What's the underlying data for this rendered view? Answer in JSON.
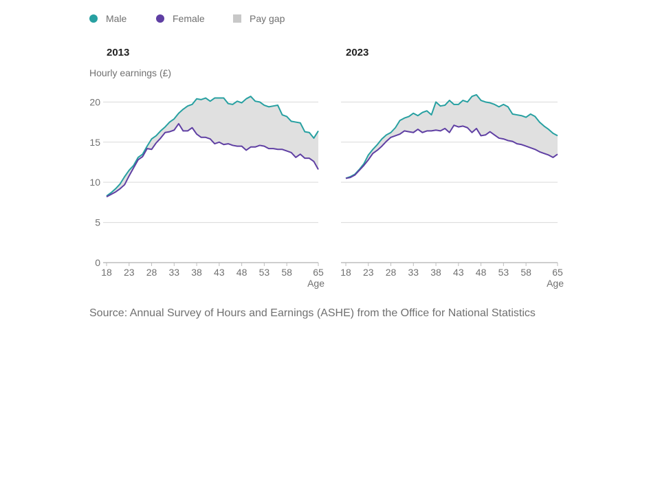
{
  "legend": [
    {
      "label": "Male",
      "marker": "circle",
      "color": "#27a0a1"
    },
    {
      "label": "Female",
      "marker": "circle",
      "color": "#5f3fa3"
    },
    {
      "label": "Pay gap",
      "marker": "square",
      "color": "#c8c8c8"
    }
  ],
  "y_axis_title": "Hourly earnings (£)",
  "x_axis_title": "Age",
  "source": "Source: Annual Survey of Hours and Earnings (ASHE) from the Office for National Statistics",
  "colors": {
    "male": "#27a0a1",
    "female": "#5f3fa3",
    "gap": "#e0e0e0"
  },
  "chart_data": [
    {
      "type": "line",
      "title": "2013",
      "xlabel": "Age",
      "ylabel": "Hourly earnings (£)",
      "xlim": [
        18,
        65
      ],
      "ylim": [
        0,
        22
      ],
      "x_ticks": [
        18,
        23,
        28,
        33,
        38,
        43,
        48,
        53,
        58,
        65
      ],
      "y_ticks": [
        0,
        5,
        10,
        15,
        20
      ],
      "grid": true,
      "x": [
        18,
        19,
        20,
        21,
        22,
        23,
        24,
        25,
        26,
        27,
        28,
        29,
        30,
        31,
        32,
        33,
        34,
        35,
        36,
        37,
        38,
        39,
        40,
        41,
        42,
        43,
        44,
        45,
        46,
        47,
        48,
        49,
        50,
        51,
        52,
        53,
        54,
        55,
        56,
        57,
        58,
        59,
        60,
        61,
        62,
        63,
        64,
        65
      ],
      "series": [
        {
          "name": "Male",
          "values": [
            8.3,
            8.7,
            9.2,
            9.8,
            10.7,
            11.5,
            12.1,
            13.1,
            13.5,
            14.5,
            15.4,
            15.8,
            16.4,
            16.9,
            17.5,
            17.9,
            18.6,
            19.1,
            19.5,
            19.7,
            20.4,
            20.3,
            20.5,
            20.1,
            20.5,
            20.5,
            20.5,
            19.8,
            19.7,
            20.1,
            19.9,
            20.4,
            20.7,
            20.1,
            20.0,
            19.6,
            19.4,
            19.5,
            19.6,
            18.4,
            18.2,
            17.6,
            17.5,
            17.4,
            16.3,
            16.2,
            15.5,
            16.4
          ]
        },
        {
          "name": "Female",
          "values": [
            8.2,
            8.5,
            8.8,
            9.2,
            9.7,
            10.8,
            11.8,
            12.8,
            13.2,
            14.2,
            14.1,
            14.9,
            15.5,
            16.2,
            16.3,
            16.5,
            17.3,
            16.4,
            16.4,
            16.8,
            16.0,
            15.6,
            15.6,
            15.4,
            14.8,
            15.0,
            14.7,
            14.8,
            14.6,
            14.5,
            14.5,
            14.0,
            14.4,
            14.4,
            14.6,
            14.5,
            14.2,
            14.2,
            14.1,
            14.1,
            13.9,
            13.7,
            13.1,
            13.5,
            13.0,
            13.0,
            12.6,
            11.6
          ]
        }
      ]
    },
    {
      "type": "line",
      "title": "2023",
      "xlabel": "Age",
      "ylabel": "Hourly earnings (£)",
      "xlim": [
        18,
        65
      ],
      "ylim": [
        0,
        22
      ],
      "x_ticks": [
        18,
        23,
        28,
        33,
        38,
        43,
        48,
        53,
        58,
        65
      ],
      "y_ticks": [
        0,
        5,
        10,
        15,
        20
      ],
      "grid": true,
      "x": [
        18,
        19,
        20,
        21,
        22,
        23,
        24,
        25,
        26,
        27,
        28,
        29,
        30,
        31,
        32,
        33,
        34,
        35,
        36,
        37,
        38,
        39,
        40,
        41,
        42,
        43,
        44,
        45,
        46,
        47,
        48,
        49,
        50,
        51,
        52,
        53,
        54,
        55,
        56,
        57,
        58,
        59,
        60,
        61,
        62,
        63,
        64,
        65
      ],
      "series": [
        {
          "name": "Male",
          "values": [
            10.5,
            10.7,
            11.0,
            11.6,
            12.3,
            13.4,
            14.1,
            14.7,
            15.4,
            15.9,
            16.2,
            16.8,
            17.7,
            18.0,
            18.2,
            18.6,
            18.3,
            18.7,
            18.9,
            18.4,
            20.0,
            19.5,
            19.6,
            20.2,
            19.7,
            19.7,
            20.2,
            20.0,
            20.7,
            20.9,
            20.2,
            20.0,
            19.9,
            19.7,
            19.4,
            19.7,
            19.4,
            18.5,
            18.4,
            18.3,
            18.1,
            18.5,
            18.2,
            17.5,
            17.0,
            16.6,
            16.1,
            15.8
          ]
        },
        {
          "name": "Female",
          "values": [
            10.5,
            10.6,
            10.9,
            11.5,
            12.1,
            12.8,
            13.6,
            14.0,
            14.5,
            15.1,
            15.6,
            15.8,
            16.0,
            16.4,
            16.3,
            16.2,
            16.6,
            16.2,
            16.4,
            16.4,
            16.5,
            16.4,
            16.7,
            16.2,
            17.1,
            16.9,
            17.0,
            16.8,
            16.2,
            16.7,
            15.8,
            15.9,
            16.3,
            15.9,
            15.5,
            15.4,
            15.2,
            15.1,
            14.8,
            14.7,
            14.5,
            14.3,
            14.1,
            13.8,
            13.6,
            13.4,
            13.1,
            13.5
          ]
        }
      ]
    }
  ]
}
